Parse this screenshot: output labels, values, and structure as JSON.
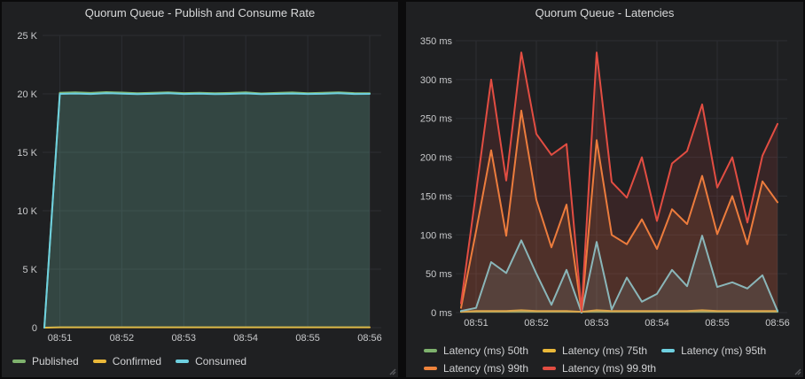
{
  "palette": {
    "page_bg": "#0b0b0c",
    "panel_bg": "#1f2022",
    "grid": "#2c2e33",
    "tick_text": "#c9cacc",
    "title_text": "#d8d9da",
    "legend_text": "#d0d1d3",
    "handle": "#5a5c60",
    "green": "#7EB26D",
    "yellow": "#EAB839",
    "cyan": "#6ED0E0",
    "orange": "#EF843C",
    "red": "#E24D42"
  },
  "chart_data": [
    {
      "type": "line",
      "title": "Quorum Queue - Publish and Consume Rate",
      "ylim": [
        0,
        25000
      ],
      "grid": true,
      "legend_position": "bottom-left",
      "fill_opacity": 0.13,
      "y_ticks": [
        {
          "v": 0,
          "label": "0"
        },
        {
          "v": 5000,
          "label": "5 K"
        },
        {
          "v": 10000,
          "label": "10 K"
        },
        {
          "v": 15000,
          "label": "15 K"
        },
        {
          "v": 20000,
          "label": "20 K"
        },
        {
          "v": 25000,
          "label": "25 K"
        }
      ],
      "x_times": [
        "08:50:45",
        "08:51:00",
        "08:51:15",
        "08:51:30",
        "08:51:45",
        "08:52:00",
        "08:52:15",
        "08:52:30",
        "08:52:45",
        "08:53:00",
        "08:53:15",
        "08:53:30",
        "08:53:45",
        "08:54:00",
        "08:54:15",
        "08:54:30",
        "08:54:45",
        "08:55:00",
        "08:55:15",
        "08:55:30",
        "08:55:45",
        "08:56:00"
      ],
      "x_ticks": [
        {
          "index": 1,
          "label": "08:51"
        },
        {
          "index": 5,
          "label": "08:52"
        },
        {
          "index": 9,
          "label": "08:53"
        },
        {
          "index": 13,
          "label": "08:54"
        },
        {
          "index": 17,
          "label": "08:55"
        },
        {
          "index": 21,
          "label": "08:56"
        }
      ],
      "series": [
        {
          "key": "published",
          "name": "Published",
          "color": "#7EB26D",
          "values": [
            0,
            20100,
            20130,
            20080,
            20150,
            20110,
            20060,
            20090,
            20140,
            20070,
            20100,
            20050,
            20080,
            20130,
            20040,
            20080,
            20120,
            20060,
            20090,
            20140,
            20070,
            20060
          ]
        },
        {
          "key": "confirmed",
          "name": "Confirmed",
          "color": "#EAB839",
          "values": [
            0,
            30,
            30,
            30,
            30,
            30,
            30,
            30,
            30,
            30,
            30,
            30,
            30,
            30,
            30,
            30,
            30,
            30,
            30,
            30,
            30,
            30
          ]
        },
        {
          "key": "consumed",
          "name": "Consumed",
          "color": "#6ED0E0",
          "values": [
            0,
            20000,
            20030,
            19990,
            20060,
            20020,
            19980,
            20010,
            20050,
            19990,
            20020,
            19980,
            20000,
            20040,
            19980,
            20000,
            20030,
            19990,
            20010,
            20050,
            19990,
            20000
          ]
        }
      ],
      "legend_rows": [
        [
          0,
          1,
          2
        ]
      ]
    },
    {
      "type": "line",
      "title": "Quorum Queue - Latencies",
      "ylim": [
        0,
        350
      ],
      "grid": true,
      "legend_position": "bottom-left",
      "fill_opacity": 0.13,
      "y_ticks": [
        {
          "v": 0,
          "label": "0 ms"
        },
        {
          "v": 50,
          "label": "50 ms"
        },
        {
          "v": 100,
          "label": "100 ms"
        },
        {
          "v": 150,
          "label": "150 ms"
        },
        {
          "v": 200,
          "label": "200 ms"
        },
        {
          "v": 250,
          "label": "250 ms"
        },
        {
          "v": 300,
          "label": "300 ms"
        },
        {
          "v": 350,
          "label": "350 ms"
        }
      ],
      "x_times": [
        "08:50:45",
        "08:51:00",
        "08:51:15",
        "08:51:30",
        "08:51:45",
        "08:52:00",
        "08:52:15",
        "08:52:30",
        "08:52:45",
        "08:53:00",
        "08:53:15",
        "08:53:30",
        "08:53:45",
        "08:54:00",
        "08:54:15",
        "08:54:30",
        "08:54:45",
        "08:55:00",
        "08:55:15",
        "08:55:30",
        "08:55:45",
        "08:56:00"
      ],
      "x_ticks": [
        {
          "index": 1,
          "label": "08:51"
        },
        {
          "index": 5,
          "label": "08:52"
        },
        {
          "index": 9,
          "label": "08:53"
        },
        {
          "index": 13,
          "label": "08:54"
        },
        {
          "index": 17,
          "label": "08:55"
        },
        {
          "index": 21,
          "label": "08:56"
        }
      ],
      "series": [
        {
          "key": "latency-50th",
          "name": "Latency (ms) 50th",
          "color": "#7EB26D",
          "values": [
            1,
            1,
            1,
            1,
            1,
            1,
            1,
            1,
            1,
            1,
            1,
            1,
            1,
            1,
            1,
            1,
            1,
            1,
            1,
            1,
            1,
            1
          ]
        },
        {
          "key": "latency-75th",
          "name": "Latency (ms) 75th",
          "color": "#EAB839",
          "values": [
            1,
            2,
            2,
            2,
            3,
            2,
            2,
            2,
            1,
            3,
            2,
            2,
            2,
            2,
            2,
            2,
            3,
            2,
            2,
            2,
            2,
            2
          ]
        },
        {
          "key": "latency-95th",
          "name": "Latency (ms) 95th",
          "color": "#6ED0E0",
          "values": [
            2,
            6,
            65,
            51,
            93,
            50,
            10,
            55,
            0,
            91,
            4,
            45,
            14,
            24,
            55,
            34,
            99,
            33,
            39,
            31,
            48,
            2
          ]
        },
        {
          "key": "latency-99th",
          "name": "Latency (ms) 99th",
          "color": "#EF843C",
          "values": [
            6,
            105,
            209,
            99,
            260,
            145,
            84,
            139,
            1,
            222,
            100,
            88,
            120,
            82,
            133,
            114,
            176,
            101,
            150,
            88,
            169,
            142
          ]
        },
        {
          "key": "latency-99.9th",
          "name": "Latency (ms) 99.9th",
          "color": "#E24D42",
          "values": [
            12,
            155,
            300,
            170,
            335,
            230,
            203,
            217,
            3,
            335,
            168,
            148,
            200,
            118,
            192,
            208,
            268,
            161,
            200,
            116,
            202,
            243
          ]
        }
      ],
      "legend_rows": [
        [
          0,
          1,
          2
        ],
        [
          3,
          4
        ]
      ]
    }
  ]
}
